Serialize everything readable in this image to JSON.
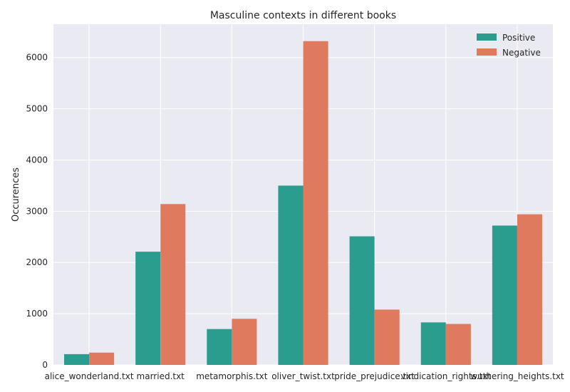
{
  "chart_data": {
    "type": "bar",
    "title": "Masculine contexts in different books",
    "xlabel": "",
    "ylabel": "Occurences",
    "categories": [
      "alice_wonderland.txt",
      "married.txt",
      "metamorphis.txt",
      "oliver_twist.txt",
      "pride_prejudice.txt",
      "vindication_rights.txt",
      "wuthering_heights.txt"
    ],
    "series": [
      {
        "name": "Positive",
        "color": "#2a9d8f",
        "values": [
          210,
          2210,
          700,
          3500,
          2510,
          830,
          2720
        ]
      },
      {
        "name": "Negative",
        "color": "#e07a5f",
        "values": [
          240,
          3140,
          900,
          6320,
          1080,
          800,
          2940
        ]
      }
    ],
    "ylim": [
      0,
      6650
    ],
    "yticks": [
      0,
      1000,
      2000,
      3000,
      4000,
      5000,
      6000
    ],
    "grid": true,
    "legend_position": "top-right",
    "background": "#eaeaf2"
  }
}
